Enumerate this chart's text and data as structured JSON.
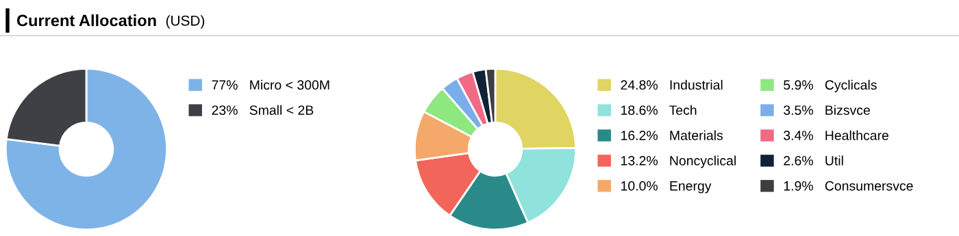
{
  "chart_data": [
    {
      "type": "donut",
      "title": "Current Allocation",
      "subtitle": "(USD)",
      "legend": "right",
      "categories": [
        "Micro < 300M",
        "Small < 2B"
      ],
      "values": [
        77,
        23
      ],
      "value_labels": [
        "77%",
        "23%"
      ],
      "colors": [
        "#7eb3e8",
        "#3f3f46"
      ]
    },
    {
      "type": "donut",
      "legend": "right",
      "categories": [
        "Industrial",
        "Tech",
        "Materials",
        "Noncyclical",
        "Energy",
        "Cyclicals",
        "Bizsvce",
        "Healthcare",
        "Util",
        "Consumersvce"
      ],
      "values": [
        24.8,
        18.6,
        16.2,
        13.2,
        10.0,
        5.9,
        3.5,
        3.4,
        2.6,
        1.9
      ],
      "value_labels": [
        "24.8%",
        "18.6%",
        "16.2%",
        "13.2%",
        "10.0%",
        "5.9%",
        "3.5%",
        "3.4%",
        "2.6%",
        "1.9%"
      ],
      "colors": [
        "#e0d462",
        "#8fe3dc",
        "#2a8a89",
        "#f2655a",
        "#f4a869",
        "#8ee77f",
        "#7aaeea",
        "#f06a86",
        "#0f2236",
        "#3d3d42"
      ]
    }
  ]
}
